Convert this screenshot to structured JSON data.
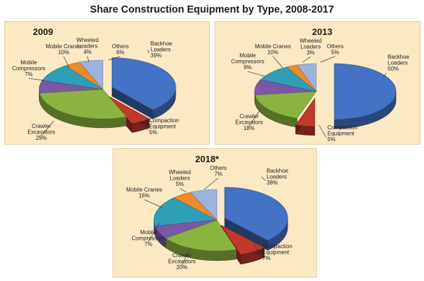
{
  "title": "Share Construction Equipment by Type, 2008-2017",
  "colors": {
    "backhoe": "#4472c4",
    "compaction": "#c0392b",
    "crawler": "#8ab43f",
    "compressors": "#7b58a6",
    "cranes": "#2f9fb8",
    "wheeled": "#ec8a2c",
    "others": "#9db3dc"
  },
  "chart_data": [
    {
      "type": "pie",
      "title": "2009",
      "slices": [
        {
          "key": "backhoe",
          "label": [
            "Backhoe",
            "Loaders",
            "39%"
          ],
          "value": 39
        },
        {
          "key": "compaction",
          "label": [
            "Compaction",
            "Equipment",
            "5%"
          ],
          "value": 5
        },
        {
          "key": "crawler",
          "label": [
            "Crawler",
            "Excavators",
            "29%"
          ],
          "value": 29
        },
        {
          "key": "compressors",
          "label": [
            "Mobile",
            "Compressors",
            "7%"
          ],
          "value": 7
        },
        {
          "key": "cranes",
          "label": [
            "Mobile Cranes",
            "10%"
          ],
          "value": 10
        },
        {
          "key": "wheeled",
          "label": [
            "Wheeled",
            "Loaders",
            "4%"
          ],
          "value": 4
        },
        {
          "key": "others",
          "label": [
            "Others",
            "6%"
          ],
          "value": 6
        }
      ]
    },
    {
      "type": "pie",
      "title": "2013",
      "slices": [
        {
          "key": "backhoe",
          "label": [
            "Backhoe",
            "Loaders",
            "50%"
          ],
          "value": 50
        },
        {
          "key": "compaction",
          "label": [
            "Compaction",
            "Equipment",
            "5%"
          ],
          "value": 5
        },
        {
          "key": "crawler",
          "label": [
            "Crawler",
            "Excavators",
            "18%"
          ],
          "value": 18
        },
        {
          "key": "compressors",
          "label": [
            "Mobile",
            "Compressors",
            "9%"
          ],
          "value": 9
        },
        {
          "key": "cranes",
          "label": [
            "Mobile Cranes",
            "10%"
          ],
          "value": 10
        },
        {
          "key": "wheeled",
          "label": [
            "Wheeled",
            "Loaders",
            "3%"
          ],
          "value": 3
        },
        {
          "key": "others",
          "label": [
            "Others",
            "5%"
          ],
          "value": 5
        }
      ]
    },
    {
      "type": "pie",
      "title": "2018*",
      "slices": [
        {
          "key": "backhoe",
          "label": [
            "Backhoe",
            "Loaders",
            "38%"
          ],
          "value": 38
        },
        {
          "key": "compaction",
          "label": [
            "Compaction",
            "Equipment",
            "7%"
          ],
          "value": 7
        },
        {
          "key": "crawler",
          "label": [
            "Crawler",
            "Excavators",
            "20%"
          ],
          "value": 20
        },
        {
          "key": "compressors",
          "label": [
            "Mobile",
            "Compressors",
            "7%"
          ],
          "value": 7
        },
        {
          "key": "cranes",
          "label": [
            "Mobile Cranes",
            "16%"
          ],
          "value": 16
        },
        {
          "key": "wheeled",
          "label": [
            "Wheeled",
            "Loaders",
            "5%"
          ],
          "value": 5
        },
        {
          "key": "others",
          "label": [
            "Others",
            "7%"
          ],
          "value": 7
        }
      ]
    }
  ]
}
